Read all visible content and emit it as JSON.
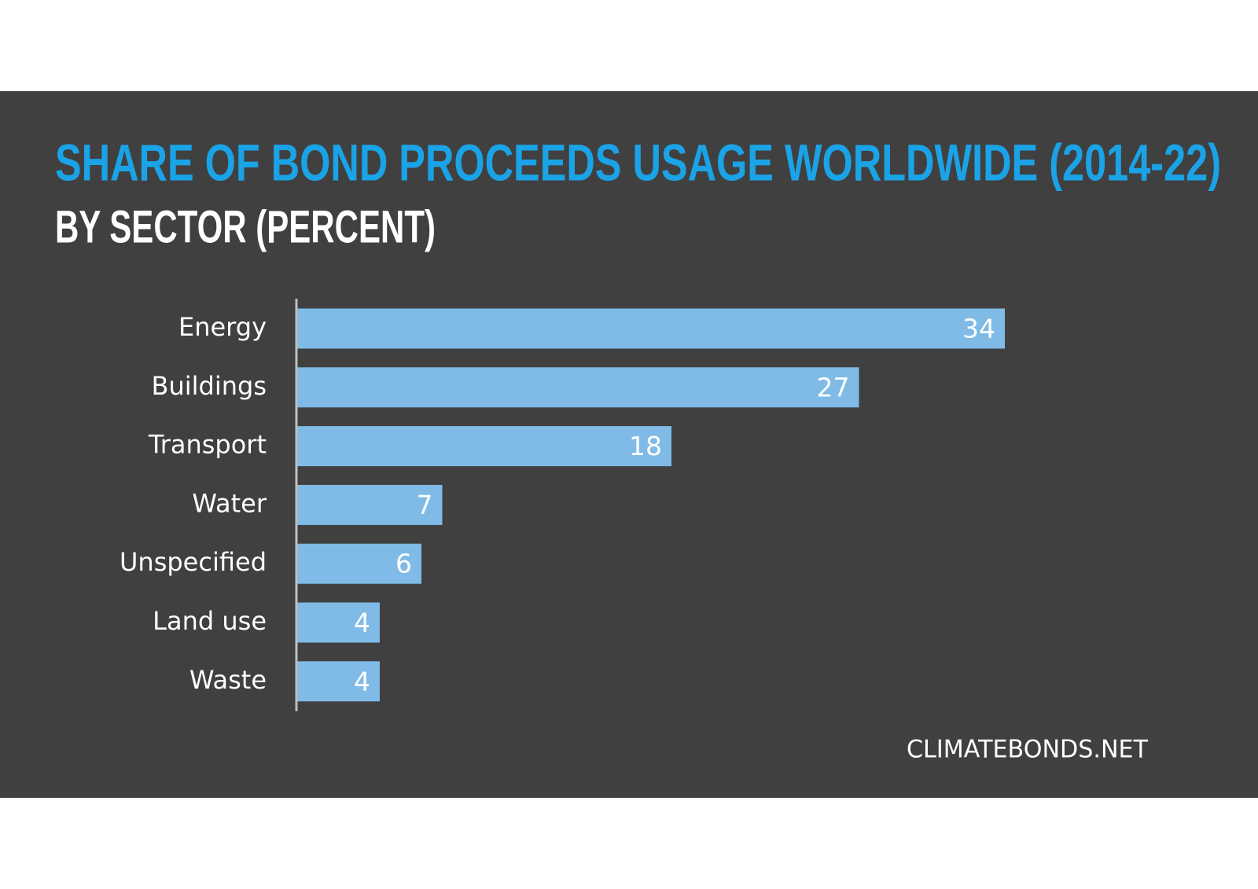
{
  "chart_data": {
    "type": "bar",
    "orientation": "horizontal",
    "title": "SHARE OF BOND PROCEEDS USAGE WORLDWIDE (2014-22)",
    "subtitle": "BY SECTOR (PERCENT)",
    "categories": [
      "Energy",
      "Buildings",
      "Transport",
      "Water",
      "Unspecified",
      "Land use",
      "Waste"
    ],
    "values": [
      34,
      27,
      18,
      7,
      6,
      4,
      4
    ],
    "color": "#7fbbe6",
    "source": "CLIMATEBONDS.NET"
  }
}
